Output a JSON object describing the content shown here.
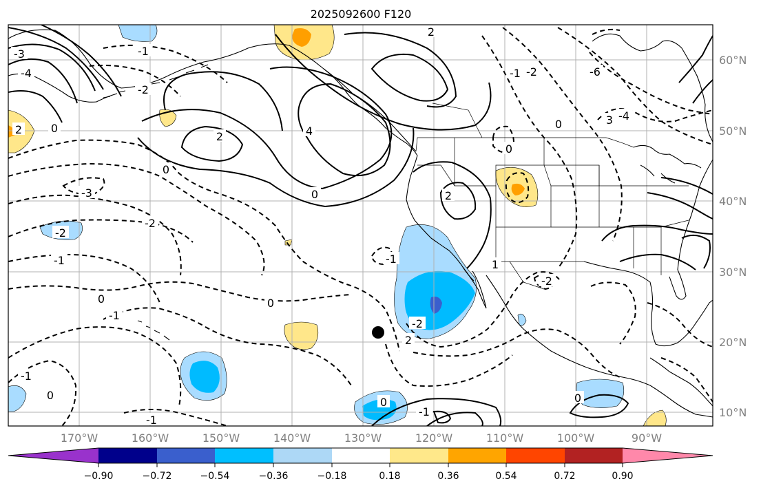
{
  "title": "2025092600 F120",
  "map": {
    "lon_labels": [
      "170°W",
      "160°W",
      "150°W",
      "140°W",
      "130°W",
      "120°W",
      "110°W",
      "100°W",
      "90°W"
    ],
    "lat_labels": [
      "60°N",
      "50°N",
      "40°N",
      "30°N",
      "20°N",
      "10°N"
    ],
    "contour_labels": [
      "2",
      "2",
      "4",
      "2",
      "0",
      "-3",
      "-2",
      "-2",
      "-1",
      "0",
      "0",
      "-1",
      "0",
      "-1",
      "-3",
      "-4",
      "3",
      "-4",
      "-6",
      "-2",
      "-1",
      "0",
      "-2",
      "-1",
      "2",
      "-1",
      "0",
      "-1",
      "0",
      "-2",
      "2",
      "0",
      "-2",
      "0",
      "1",
      "-1",
      "0"
    ],
    "colors": {
      "solid_contour": "#000000",
      "negative_contour": "#000000",
      "neg_light": "#a9dcff",
      "neg_mid": "#00bbff",
      "neg_strong": "#3a5fcd",
      "pos_light": "#ffe78a",
      "pos_mid": "#ff9f00"
    }
  },
  "colorbar": {
    "colors": [
      "#9932cc",
      "#00008b",
      "#3a5fcd",
      "#00bfff",
      "#add8f6",
      "#ffffff",
      "#ffe88a",
      "#ffa500",
      "#ff4500",
      "#b22222",
      "#ff88aa"
    ],
    "tick_labels": [
      "−0.90",
      "−0.72",
      "−0.54",
      "−0.36",
      "−0.18",
      "0.18",
      "0.36",
      "0.54",
      "0.72",
      "0.90"
    ]
  }
}
